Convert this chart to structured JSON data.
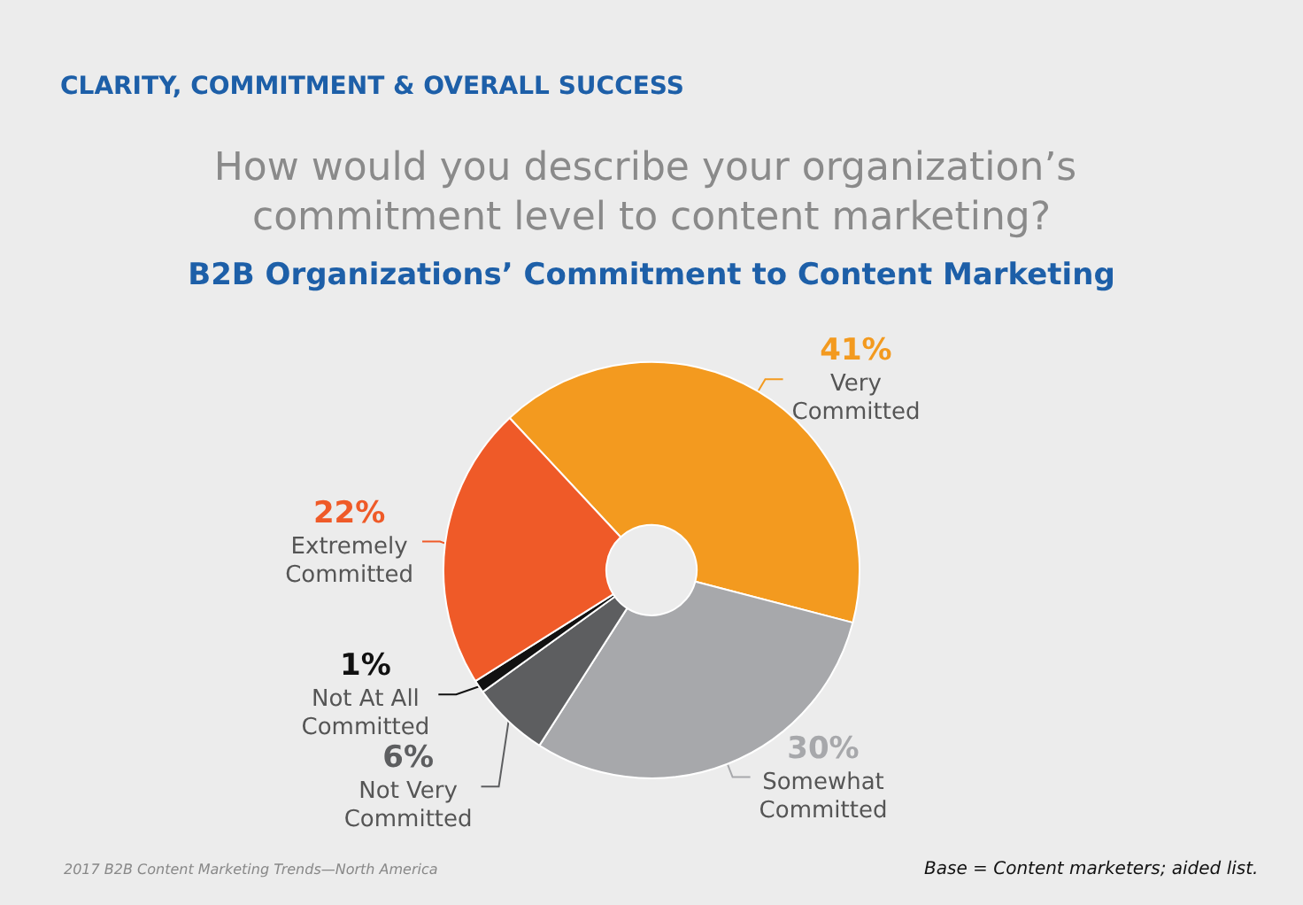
{
  "chart_data": {
    "type": "donut",
    "title": "How would you describe your organization’s commitment level to content marketing?",
    "subtitle": "B2B Organizations’ Commitment to Content Marketing",
    "categories": [
      "Very Committed",
      "Somewhat Committed",
      "Not Very Committed",
      "Not At All Committed",
      "Extremely Committed"
    ],
    "values": [
      41,
      30,
      6,
      1,
      22
    ],
    "colors": [
      "#f39a1f",
      "#a7a8ab",
      "#5d5e60",
      "#111111",
      "#ef5a28"
    ],
    "value_labels": [
      "41%",
      "30%",
      "6%",
      "1%",
      "22%"
    ],
    "legend": false,
    "annotations": [
      "CLARITY, COMMITMENT & OVERALL SUCCESS",
      "2017 B2B Content Marketing Trends—North America",
      "Base = Content marketers; aided list."
    ]
  }
}
